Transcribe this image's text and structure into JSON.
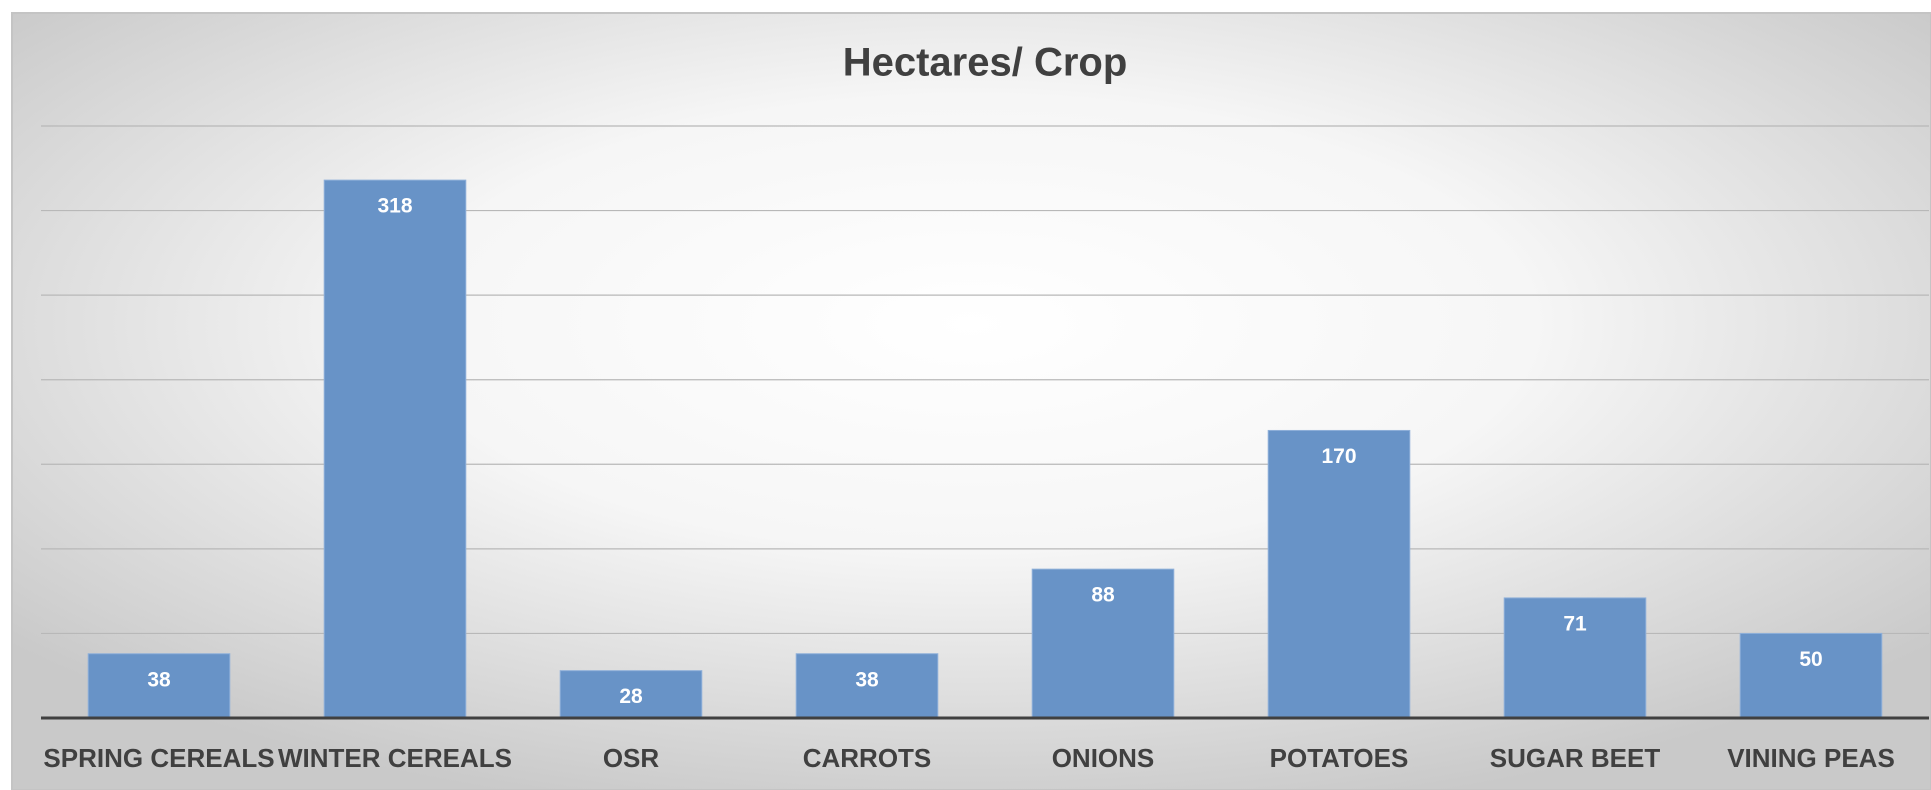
{
  "chart_data": {
    "type": "bar",
    "title": "Hectares/ Crop",
    "categories": [
      "SPRING CEREALS",
      "WINTER CEREALS",
      "OSR",
      "CARROTS",
      "ONIONS",
      "POTATOES",
      "SUGAR BEET",
      "VINING PEAS"
    ],
    "values": [
      38,
      318,
      28,
      38,
      88,
      170,
      71,
      50
    ],
    "color": "#6893c7",
    "ylim": [
      0,
      350
    ],
    "yticks": [
      0,
      50,
      100,
      150,
      200,
      250,
      300,
      350
    ],
    "grid": true
  }
}
